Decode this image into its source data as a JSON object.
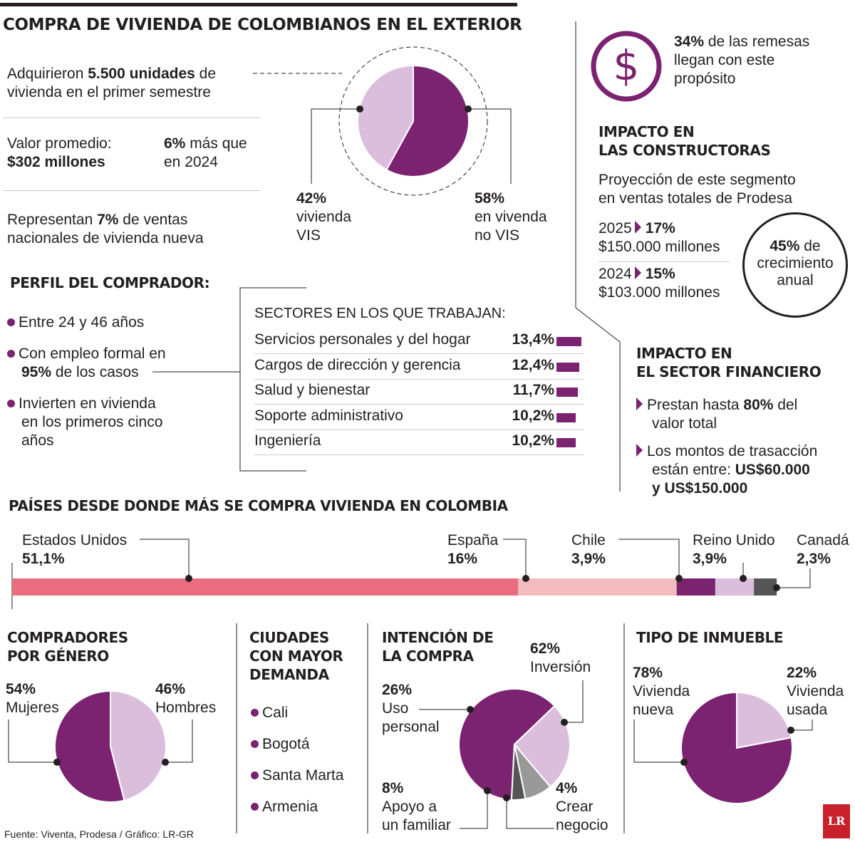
{
  "title": "COMPRA DE VIVIENDA DE COLOMBIANOS EN EL EXTERIOR",
  "colors": {
    "purple": "#7b2271",
    "lilac": "#dbbedb",
    "pink": "#e96d7f",
    "light_pink": "#f2bcbf",
    "gray": "#999999",
    "dark_gray": "#555555"
  },
  "intro": {
    "units": [
      "Adquirieron ",
      "5.500 unidades",
      " de",
      "vivienda en el primer semestre"
    ],
    "avg_label": "Valor promedio:",
    "avg_value": "$302 millones",
    "growth": [
      "6%",
      " más que",
      "en 2024"
    ],
    "share": [
      "Representan ",
      "7%",
      " de ventas",
      "nacionales de vivienda nueva"
    ]
  },
  "vis_chart": {
    "left": {
      "value": "42%",
      "label1": "vivienda",
      "label2": "VIS"
    },
    "right": {
      "value": "58%",
      "label1": "en vivenda",
      "label2": "no VIS"
    }
  },
  "remesas": {
    "value": "34%",
    "l1": " de las remesas",
    "l2": "llegan con este",
    "l3": "propósito",
    "icon": "dollar-icon"
  },
  "constructoras": {
    "heading1": "IMPACTO EN",
    "heading2": "LAS CONSTRUCTORAS",
    "sub1": "Proyección de este segmento",
    "sub2": "en ventas totales de Prodesa",
    "rows": [
      {
        "year": "2025",
        "pct": "17%",
        "amount": "$150.000 millones"
      },
      {
        "year": "2024",
        "pct": "15%",
        "amount": "$103.000 millones"
      }
    ],
    "circle": {
      "value": "45%",
      "l1": " de",
      "l2": "crecimiento",
      "l3": "anual"
    }
  },
  "perfil": {
    "heading": "PERFIL DEL COMPRADOR:",
    "items": [
      {
        "l1": "Entre 24 y 46 años"
      },
      {
        "l1": "Con empleo formal en",
        "l2b": "95%",
        "l2": " de los casos"
      },
      {
        "l1": "Invierten en vivienda",
        "l2": "en los primeros cinco",
        "l3": "años"
      }
    ]
  },
  "sectores": {
    "heading": "SECTORES EN LOS QUE TRABAJAN:",
    "rows": [
      {
        "name": "Servicios personales y del hogar",
        "pct": "13,4%",
        "value": 13.4
      },
      {
        "name": "Cargos de dirección y gerencia",
        "pct": "12,4%",
        "value": 12.4
      },
      {
        "name": "Salud y bienestar",
        "pct": "11,7%",
        "value": 11.7
      },
      {
        "name": "Soporte administrativo",
        "pct": "10,2%",
        "value": 10.2
      },
      {
        "name": "Ingeniería",
        "pct": "10,2%",
        "value": 10.2
      }
    ]
  },
  "financiero": {
    "heading1": "IMPACTO EN",
    "heading2": "EL SECTOR FINANCIERO",
    "item1": [
      "Prestan hasta ",
      "80%",
      " del",
      "valor total"
    ],
    "item2": [
      "Los montos de trasacción",
      "están entre: ",
      "US$60.000",
      "y US$150.000"
    ]
  },
  "paises": {
    "heading": "PAÍSES DESDE DONDE MÁS SE COMPRA VIVIENDA EN COLOMBIA",
    "items": [
      {
        "name": "Estados Unidos",
        "pct": "51,1%",
        "value": 51.1
      },
      {
        "name": "España",
        "pct": "16%",
        "value": 16
      },
      {
        "name": "Chile",
        "pct": "3,9%",
        "value": 3.9
      },
      {
        "name": "Reino Unido",
        "pct": "3,9%",
        "value": 3.9
      },
      {
        "name": "Canadá",
        "pct": "2,3%",
        "value": 2.3
      }
    ]
  },
  "genero": {
    "heading1": "COMPRADORES",
    "heading2": "POR GÉNERO",
    "left": {
      "value": "54%",
      "label": "Mujeres"
    },
    "right": {
      "value": "46%",
      "label": "Hombres"
    }
  },
  "ciudades": {
    "heading1": "CIUDADES",
    "heading2": "CON MAYOR",
    "heading3": "DEMANDA",
    "items": [
      "Cali",
      "Bogotá",
      "Santa Marta",
      "Armenia"
    ]
  },
  "intencion": {
    "heading1": "INTENCIÓN DE",
    "heading2": "LA COMPRA",
    "inversion": {
      "value": "62%",
      "label": "Inversión"
    },
    "uso": {
      "value": "26%",
      "l1": "Uso",
      "l2": "personal"
    },
    "apoyo": {
      "value": "8%",
      "l1": "Apoyo a",
      "l2": "un familiar"
    },
    "crear": {
      "value": "4%",
      "l1": "Crear",
      "l2": "negocio"
    }
  },
  "inmueble": {
    "heading": "TIPO DE INMUEBLE",
    "nueva": {
      "value": "78%",
      "l1": "Vivienda",
      "l2": "nueva"
    },
    "usada": {
      "value": "22%",
      "l1": "Vivienda",
      "l2": "usada"
    }
  },
  "source": "Fuente: Viventa, Prodesa / Gráfico: LR-GR",
  "logo": "LR",
  "chart_data": [
    {
      "type": "pie",
      "categories": [
        "vivienda VIS",
        "en vivenda no VIS"
      ],
      "values": [
        42,
        58
      ]
    },
    {
      "type": "bar",
      "categories": [
        "Servicios personales y del hogar",
        "Cargos de dirección y gerencia",
        "Salud y bienestar",
        "Soporte administrativo",
        "Ingeniería"
      ],
      "values": [
        13.4,
        12.4,
        11.7,
        10.2,
        10.2
      ],
      "title": "SECTORES EN LOS QUE TRABAJAN:"
    },
    {
      "type": "bar",
      "categories": [
        "Estados Unidos",
        "España",
        "Chile",
        "Reino Unido",
        "Canadá"
      ],
      "values": [
        51.1,
        16,
        3.9,
        3.9,
        2.3
      ],
      "title": "PAÍSES DESDE DONDE MÁS SE COMPRA VIVIENDA EN COLOMBIA"
    },
    {
      "type": "pie",
      "categories": [
        "Mujeres",
        "Hombres"
      ],
      "values": [
        54,
        46
      ]
    },
    {
      "type": "pie",
      "categories": [
        "Inversión",
        "Uso personal",
        "Apoyo a un familiar",
        "Crear negocio"
      ],
      "values": [
        62,
        26,
        8,
        4
      ]
    },
    {
      "type": "pie",
      "categories": [
        "Vivienda nueva",
        "Vivienda usada"
      ],
      "values": [
        78,
        22
      ]
    }
  ]
}
